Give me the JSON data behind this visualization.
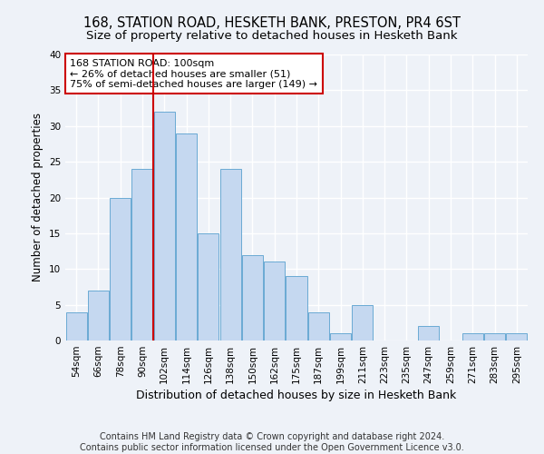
{
  "title": "168, STATION ROAD, HESKETH BANK, PRESTON, PR4 6ST",
  "subtitle": "Size of property relative to detached houses in Hesketh Bank",
  "xlabel": "Distribution of detached houses by size in Hesketh Bank",
  "ylabel": "Number of detached properties",
  "categories": [
    "54sqm",
    "66sqm",
    "78sqm",
    "90sqm",
    "102sqm",
    "114sqm",
    "126sqm",
    "138sqm",
    "150sqm",
    "162sqm",
    "175sqm",
    "187sqm",
    "199sqm",
    "211sqm",
    "223sqm",
    "235sqm",
    "247sqm",
    "259sqm",
    "271sqm",
    "283sqm",
    "295sqm"
  ],
  "values": [
    4,
    7,
    20,
    24,
    32,
    29,
    15,
    24,
    12,
    11,
    9,
    4,
    1,
    5,
    0,
    0,
    2,
    0,
    1,
    1,
    1
  ],
  "bar_color": "#c5d8f0",
  "bar_edgecolor": "#6aaad4",
  "vline_x_index": 4,
  "vline_color": "#cc0000",
  "annotation_text": "168 STATION ROAD: 100sqm\n← 26% of detached houses are smaller (51)\n75% of semi-detached houses are larger (149) →",
  "annotation_box_color": "white",
  "annotation_box_edgecolor": "#cc0000",
  "ylim": [
    0,
    40
  ],
  "yticks": [
    0,
    5,
    10,
    15,
    20,
    25,
    30,
    35,
    40
  ],
  "footer_line1": "Contains HM Land Registry data © Crown copyright and database right 2024.",
  "footer_line2": "Contains public sector information licensed under the Open Government Licence v3.0.",
  "bg_color": "#eef2f8",
  "plot_bg_color": "#eef2f8",
  "grid_color": "white",
  "title_fontsize": 10.5,
  "subtitle_fontsize": 9.5,
  "xlabel_fontsize": 9,
  "ylabel_fontsize": 8.5,
  "tick_fontsize": 7.5,
  "annotation_fontsize": 8,
  "footer_fontsize": 7
}
